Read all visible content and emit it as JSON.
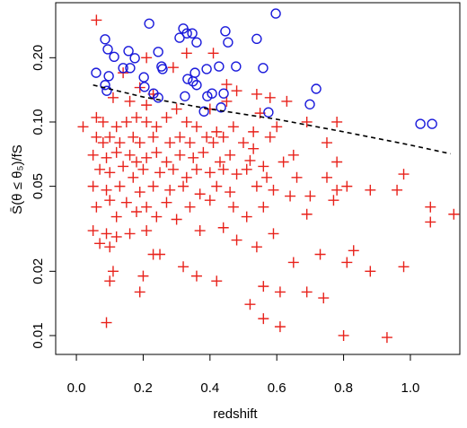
{
  "chart_data": {
    "type": "scatter",
    "xlabel": "redshift",
    "ylabel": "S̄(θ ≤ θ₅)/fS",
    "xlim": [
      -0.062,
      1.148
    ],
    "ylim": [
      0.00816,
      0.362
    ],
    "ylog": true,
    "xticks": [
      {
        "value": 0.0,
        "label": "0.0"
      },
      0.2,
      0.4,
      0.6,
      0.8,
      {
        "value": 1.0,
        "label": "1.0"
      }
    ],
    "yticks": [
      0.01,
      0.02,
      0.05,
      {
        "value": 0.1,
        "label": "0.10"
      },
      {
        "value": 0.2,
        "label": "0.20"
      }
    ],
    "series": [
      {
        "color": "#e8221b",
        "marker": "plus",
        "x": [
          0.06,
          0.14,
          0.21,
          0.29,
          0.33,
          0.41,
          0.45,
          0.48,
          0.19,
          0.23,
          0.11,
          0.16,
          0.21,
          0.3,
          0.4,
          0.45,
          0.54,
          0.58,
          0.63,
          0.02,
          0.06,
          0.08,
          0.12,
          0.15,
          0.18,
          0.21,
          0.24,
          0.27,
          0.33,
          0.36,
          0.42,
          0.47,
          0.53,
          0.55,
          0.6,
          0.69,
          0.78,
          0.06,
          0.08,
          0.1,
          0.13,
          0.17,
          0.19,
          0.23,
          0.28,
          0.31,
          0.34,
          0.39,
          0.41,
          0.44,
          0.5,
          0.53,
          0.58,
          0.65,
          0.75,
          0.05,
          0.09,
          0.12,
          0.16,
          0.18,
          0.21,
          0.24,
          0.27,
          0.31,
          0.35,
          0.38,
          0.43,
          0.46,
          0.52,
          0.56,
          0.62,
          0.78,
          0.07,
          0.1,
          0.14,
          0.17,
          0.2,
          0.25,
          0.29,
          0.33,
          0.36,
          0.4,
          0.44,
          0.48,
          0.51,
          0.57,
          0.66,
          0.75,
          0.98,
          0.05,
          0.09,
          0.13,
          0.19,
          0.23,
          0.28,
          0.32,
          0.37,
          0.42,
          0.46,
          0.54,
          0.59,
          0.64,
          0.7,
          0.78,
          0.81,
          0.88,
          0.96,
          0.1,
          0.15,
          0.21,
          0.27,
          0.34,
          0.4,
          0.47,
          0.56,
          0.06,
          0.18,
          0.12,
          0.24,
          0.77,
          1.06,
          1.13,
          1.06,
          0.69,
          0.51,
          0.3,
          0.05,
          0.09,
          0.12,
          0.07,
          0.16,
          0.21,
          0.37,
          0.44,
          0.48,
          0.54,
          0.59,
          0.1,
          0.23,
          0.25,
          0.83,
          0.81,
          0.73,
          0.65,
          0.88,
          0.98,
          0.32,
          0.11,
          0.1,
          0.2,
          0.36,
          0.42,
          0.19,
          0.61,
          0.56,
          0.69,
          0.74,
          0.52,
          0.56,
          0.61,
          0.09,
          0.8,
          0.93
        ],
        "values": [
          0.3,
          0.17,
          0.2,
          0.18,
          0.21,
          0.21,
          0.15,
          0.14,
          0.145,
          0.135,
          0.13,
          0.125,
          0.12,
          0.115,
          0.115,
          0.125,
          0.135,
          0.13,
          0.125,
          0.095,
          0.105,
          0.1,
          0.095,
          0.1,
          0.105,
          0.1,
          0.095,
          0.105,
          0.1,
          0.095,
          0.09,
          0.095,
          0.09,
          0.11,
          0.095,
          0.1,
          0.1,
          0.085,
          0.08,
          0.085,
          0.08,
          0.085,
          0.08,
          0.085,
          0.08,
          0.085,
          0.08,
          0.085,
          0.08,
          0.085,
          0.08,
          0.075,
          0.085,
          0.07,
          0.08,
          0.07,
          0.068,
          0.072,
          0.07,
          0.065,
          0.068,
          0.072,
          0.065,
          0.07,
          0.068,
          0.072,
          0.065,
          0.07,
          0.066,
          0.062,
          0.065,
          0.065,
          0.06,
          0.058,
          0.062,
          0.055,
          0.06,
          0.058,
          0.06,
          0.055,
          0.06,
          0.058,
          0.06,
          0.057,
          0.06,
          0.055,
          0.055,
          0.055,
          0.057,
          0.05,
          0.048,
          0.05,
          0.047,
          0.05,
          0.048,
          0.05,
          0.046,
          0.05,
          0.047,
          0.05,
          0.048,
          0.045,
          0.045,
          0.048,
          0.05,
          0.048,
          0.048,
          0.043,
          0.042,
          0.04,
          0.042,
          0.04,
          0.043,
          0.04,
          0.04,
          0.04,
          0.038,
          0.036,
          0.036,
          0.043,
          0.04,
          0.037,
          0.034,
          0.037,
          0.036,
          0.035,
          0.031,
          0.03,
          0.029,
          0.027,
          0.03,
          0.031,
          0.031,
          0.032,
          0.028,
          0.026,
          0.03,
          0.026,
          0.024,
          0.024,
          0.025,
          0.022,
          0.024,
          0.022,
          0.02,
          0.021,
          0.021,
          0.02,
          0.018,
          0.019,
          0.019,
          0.018,
          0.016,
          0.016,
          0.017,
          0.016,
          0.015,
          0.014,
          0.012,
          0.011,
          0.0115,
          0.01,
          0.0098
        ]
      },
      {
        "color": "#1a1adb",
        "marker": "circle",
        "x": [
          0.597,
          0.218,
          0.086,
          0.32,
          0.331,
          0.347,
          0.309,
          0.36,
          0.446,
          0.454,
          0.54,
          0.094,
          0.113,
          0.156,
          0.175,
          0.245,
          0.255,
          0.258,
          0.161,
          0.14,
          0.39,
          0.427,
          0.478,
          0.355,
          0.559,
          0.059,
          0.097,
          0.202,
          0.333,
          0.349,
          0.36,
          0.204,
          0.231,
          0.245,
          0.325,
          0.392,
          0.406,
          0.441,
          0.433,
          0.086,
          0.091,
          0.718,
          0.699,
          0.575,
          0.382,
          1.03,
          1.065
        ],
        "values": [
          0.322,
          0.289,
          0.244,
          0.274,
          0.26,
          0.26,
          0.248,
          0.236,
          0.266,
          0.236,
          0.245,
          0.219,
          0.202,
          0.215,
          0.199,
          0.213,
          0.182,
          0.177,
          0.179,
          0.179,
          0.177,
          0.182,
          0.182,
          0.17,
          0.179,
          0.17,
          0.164,
          0.162,
          0.159,
          0.155,
          0.149,
          0.146,
          0.136,
          0.13,
          0.132,
          0.132,
          0.136,
          0.136,
          0.117,
          0.149,
          0.14,
          0.143,
          0.121,
          0.111,
          0.112,
          0.098,
          0.098
        ]
      },
      {
        "color": "#000000",
        "marker": "none",
        "linestyle": "dashed",
        "x": [
          0.05,
          0.2,
          0.4,
          0.6,
          0.8,
          1.0,
          1.12
        ],
        "values": [
          0.149,
          0.131,
          0.115,
          0.103,
          0.09,
          0.078,
          0.071
        ]
      }
    ]
  }
}
